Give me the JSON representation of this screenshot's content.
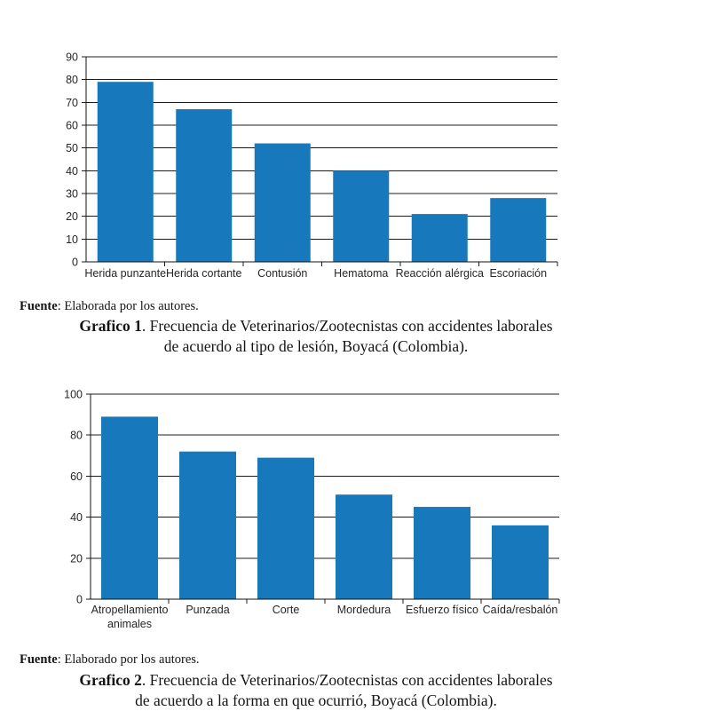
{
  "page": {
    "background": "#ffffff"
  },
  "figure1": {
    "fuente_label": "Fuente",
    "fuente_text": ": Elaborada por los autores.",
    "caption_bold": "Grafico 1",
    "caption_line1_rest": ". Frecuencia de Veterinarios/Zootecnistas con accidentes laborales",
    "caption_line2": "de acuerdo al tipo de lesión, Boyacá (Colombia)."
  },
  "figure2": {
    "fuente_label": "Fuente",
    "fuente_text": ": Elaborado por los autores.",
    "caption_bold": "Grafico 2",
    "caption_line1_rest": ". Frecuencia de Veterinarios/Zootecnistas con accidentes laborales",
    "caption_line2": "de acuerdo a la forma en que ocurrió, Boyacá (Colombia)."
  },
  "chart_data": [
    {
      "type": "bar",
      "title": "Grafico 1. Frecuencia de Veterinarios/Zootecnistas con accidentes laborales de acuerdo al tipo de lesión, Boyacá (Colombia).",
      "categories": [
        "Herida punzante",
        "Herida cortante",
        "Contusión",
        "Hematoma",
        "Reacción alérgica",
        "Escoriación"
      ],
      "values": [
        79,
        67,
        52,
        40,
        21,
        28
      ],
      "xlabel": "",
      "ylabel": "",
      "ylim": [
        0,
        90
      ],
      "yticks": [
        0,
        10,
        20,
        30,
        40,
        50,
        60,
        70,
        80,
        90
      ],
      "grid": true,
      "legend": false,
      "bar_color": "#1878BC",
      "source_note": "Fuente: Elaborada por los autores."
    },
    {
      "type": "bar",
      "title": "Grafico 2. Frecuencia de Veterinarios/Zootecnistas con accidentes laborales de acuerdo a la forma en que ocurrió, Boyacá (Colombia).",
      "categories": [
        [
          "Atropellamiento",
          "animales"
        ],
        "Punzada",
        "Corte",
        "Mordedura",
        "Esfuerzo físico",
        "Caída/resbalón"
      ],
      "values": [
        89,
        72,
        69,
        51,
        45,
        36
      ],
      "xlabel": "",
      "ylabel": "",
      "ylim": [
        0,
        100
      ],
      "yticks": [
        0,
        20,
        40,
        60,
        80,
        100
      ],
      "grid": true,
      "legend": false,
      "bar_color": "#1878BC",
      "source_note": "Fuente: Elaborado por los autores."
    }
  ]
}
